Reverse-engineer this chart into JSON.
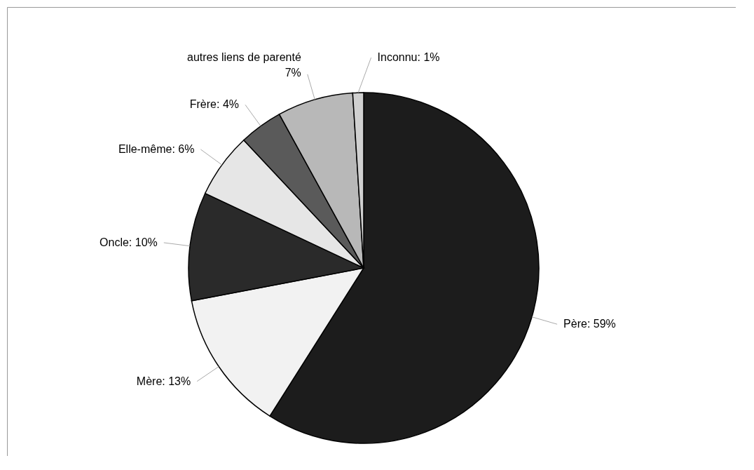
{
  "chart_data": {
    "type": "pie",
    "categories": [
      "Père",
      "Mère",
      "Oncle",
      "Elle-même",
      "Frère",
      "autres liens de parenté",
      "Inconnu"
    ],
    "values": [
      59,
      13,
      10,
      6,
      4,
      7,
      1
    ],
    "colors": [
      "#1c1c1c",
      "#f2f2f2",
      "#2a2a2a",
      "#e6e6e6",
      "#5a5a5a",
      "#b8b8b8",
      "#d0d0d0"
    ],
    "value_labels": [
      "59%",
      "13%",
      "10%",
      "6%",
      "4%",
      "7%",
      "1%"
    ]
  }
}
